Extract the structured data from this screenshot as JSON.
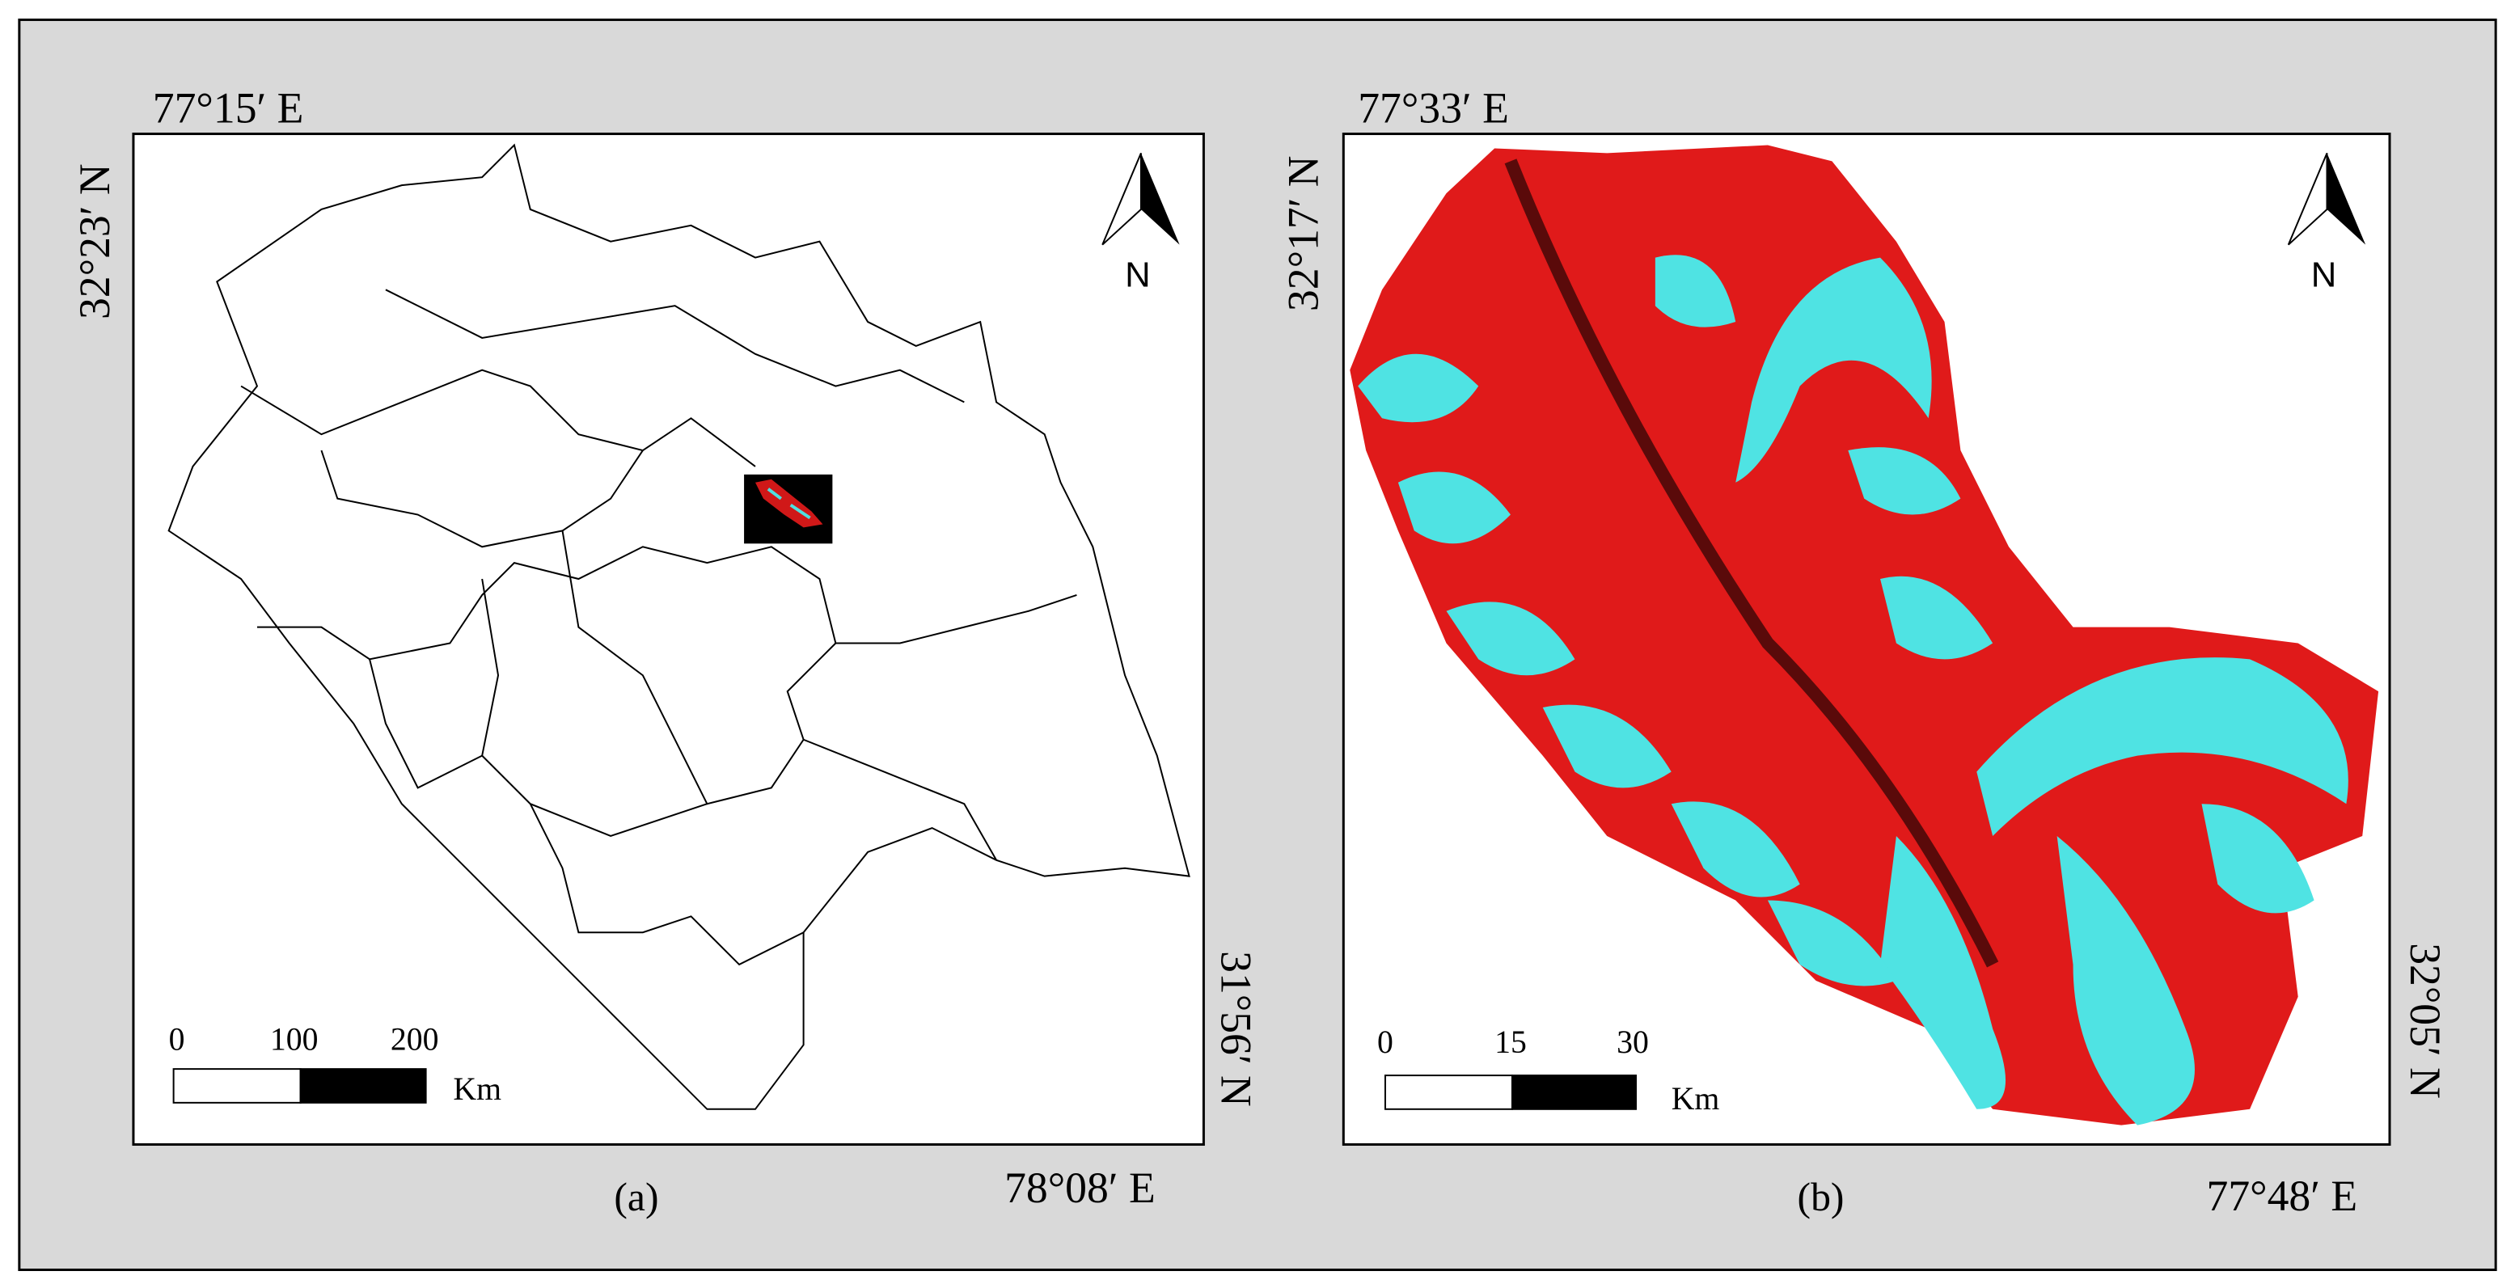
{
  "panels": [
    {
      "caption": "(a)",
      "top_left_lon": "77°15′ E",
      "top_left_lat": "32°23′ N",
      "bottom_right_lon": "78°08′ E",
      "bottom_right_lat": "31°56′ N",
      "north": "N",
      "scale": {
        "ticks": [
          0,
          100,
          200
        ],
        "unit": "Km"
      }
    },
    {
      "caption": "(b)",
      "top_left_lon": "77°33′ E",
      "top_left_lat": "32°17′ N",
      "bottom_right_lon": "77°48′ E",
      "bottom_right_lat": "32°05′ N",
      "north": "N",
      "scale": {
        "ticks": [
          0,
          15,
          30
        ],
        "unit": "Km"
      }
    }
  ]
}
